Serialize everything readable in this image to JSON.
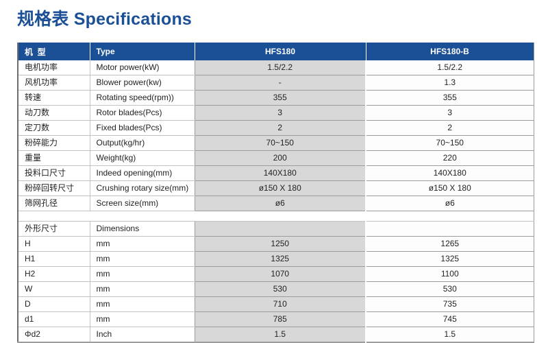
{
  "title": "规格表 Specifications",
  "colors": {
    "accent_blue": "#1b4f96",
    "hfs180_column_bg": "#d8d8d8",
    "header_text": "#ffffff"
  },
  "table": {
    "headers": [
      "机  型",
      "Type",
      "HFS180",
      "HFS180-B"
    ],
    "spec_rows": [
      [
        "电机功率",
        "Motor power(kW)",
        "1.5/2.2",
        "1.5/2.2"
      ],
      [
        "风机功率",
        "Blower power(kw)",
        "-",
        "1.3"
      ],
      [
        "转速",
        "Rotating speed(rpm))",
        "355",
        "355"
      ],
      [
        "动刀数",
        "Rotor blades(Pcs)",
        "3",
        "3"
      ],
      [
        "定刀数",
        "Fixed blades(Pcs)",
        "2",
        "2"
      ],
      [
        "粉碎能力",
        "Output(kg/hr)",
        "70~150",
        "70~150"
      ],
      [
        "重量",
        "Weight(kg)",
        "200",
        "220"
      ],
      [
        "投料口尺寸",
        "Indeed opening(mm)",
        "140X180",
        "140X180"
      ],
      [
        "粉碎回转尺寸",
        "Crushing rotary size(mm)",
        "ø150 X 180",
        "ø150 X 180"
      ],
      [
        "筛网孔径",
        "Screen size(mm)",
        "ø6",
        "ø6"
      ]
    ],
    "dimension_rows": [
      [
        "外形尺寸",
        "Dimensions",
        "",
        ""
      ],
      [
        "H",
        "mm",
        "1250",
        "1265"
      ],
      [
        "H1",
        "mm",
        "1325",
        "1325"
      ],
      [
        "H2",
        "mm",
        "1070",
        "1100"
      ],
      [
        "W",
        "mm",
        "530",
        "530"
      ],
      [
        "D",
        "mm",
        "710",
        "735"
      ],
      [
        "d1",
        "mm",
        "785",
        "745"
      ],
      [
        "Φd2",
        "Inch",
        "1.5",
        "1.5"
      ]
    ]
  }
}
